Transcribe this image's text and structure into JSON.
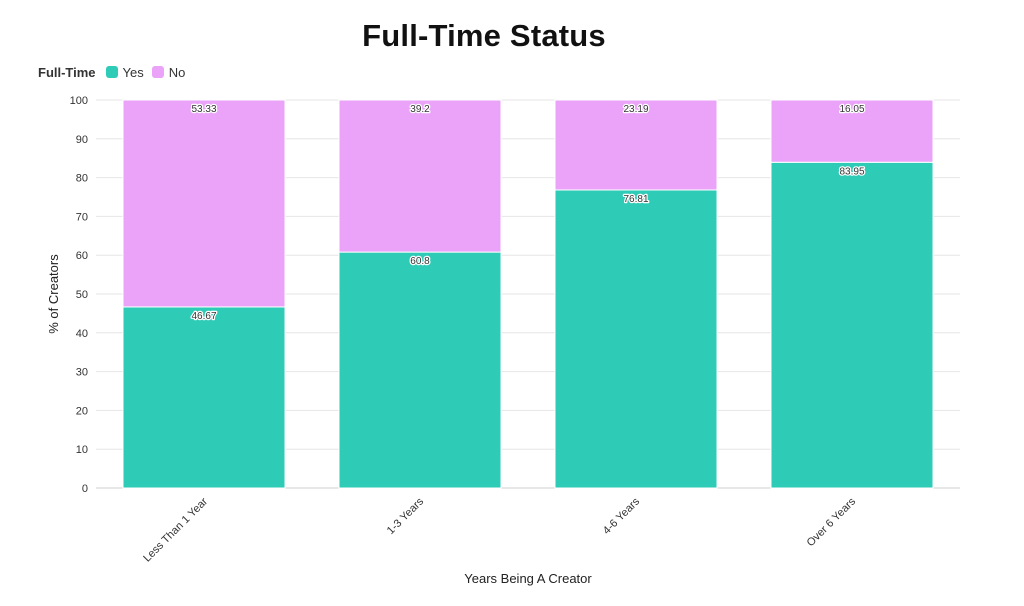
{
  "chart_data": {
    "type": "bar",
    "stacked": true,
    "title": "Full-Time Status",
    "xlabel": "Years Being A Creator",
    "ylabel": "% of Creators",
    "ylim": [
      0,
      100
    ],
    "yticks": [
      0,
      10,
      20,
      30,
      40,
      50,
      60,
      70,
      80,
      90,
      100
    ],
    "grid": true,
    "legend": {
      "title": "Full-Time",
      "placement": "top-left"
    },
    "categories": [
      "Less Than 1 Year",
      "1-3 Years",
      "4-6 Years",
      "Over 6 Years"
    ],
    "series": [
      {
        "name": "Yes",
        "color": "#2ecbb7",
        "values": [
          46.67,
          60.8,
          76.81,
          83.95
        ]
      },
      {
        "name": "No",
        "color": "#eaa3f8",
        "values": [
          53.33,
          39.2,
          23.19,
          16.05
        ]
      }
    ]
  }
}
